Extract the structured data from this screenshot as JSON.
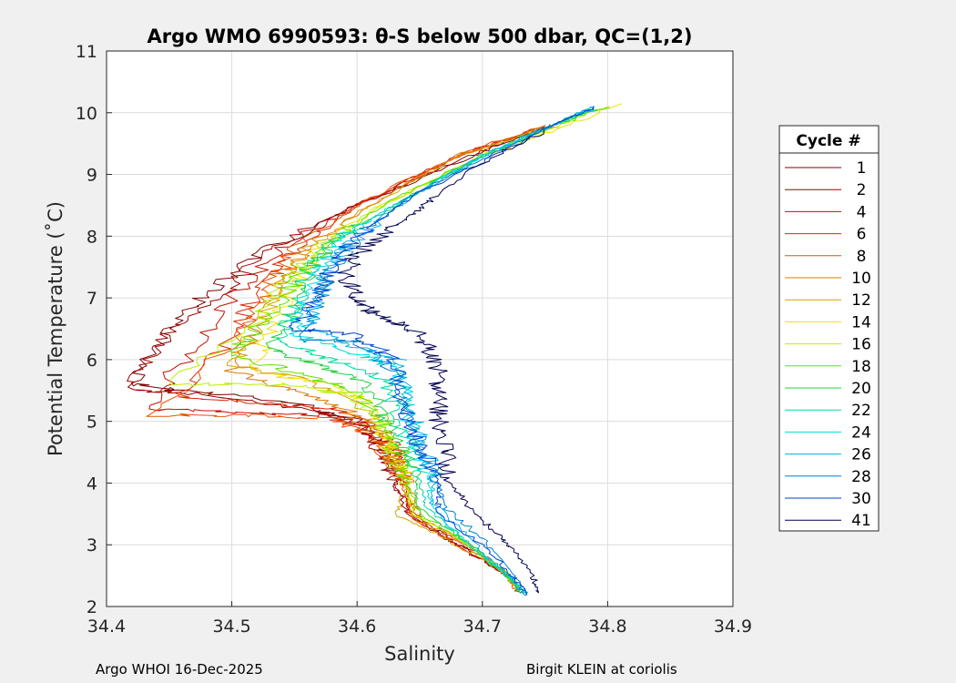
{
  "chart_data": {
    "type": "line",
    "title": "Argo WMO 6990593: θ-S below 500 dbar,  QC=(1,2)",
    "xlabel": "Salinity",
    "ylabel": "Potential Temperature (˚C)",
    "xlim": [
      34.4,
      34.9
    ],
    "ylim": [
      2,
      11
    ],
    "xticks": [
      "34.4",
      "34.5",
      "34.6",
      "34.7",
      "34.8",
      "34.9"
    ],
    "yticks": [
      "2",
      "3",
      "4",
      "5",
      "6",
      "7",
      "8",
      "9",
      "10",
      "11"
    ],
    "grid": true,
    "legend_title": "Cycle #",
    "legend_position": "right",
    "series": [
      {
        "name": "1",
        "color": "#800000",
        "points": [
          [
            34.755,
            9.8
          ],
          [
            34.69,
            9.3
          ],
          [
            34.6,
            8.5
          ],
          [
            34.53,
            7.8
          ],
          [
            34.48,
            7.1
          ],
          [
            34.45,
            6.5
          ],
          [
            34.42,
            5.6
          ],
          [
            34.46,
            5.5
          ],
          [
            34.55,
            5.3
          ],
          [
            34.6,
            5.0
          ],
          [
            34.62,
            4.6
          ],
          [
            34.63,
            4.0
          ],
          [
            34.64,
            3.5
          ],
          [
            34.68,
            3.0
          ],
          [
            34.72,
            2.5
          ],
          [
            34.73,
            2.25
          ]
        ]
      },
      {
        "name": "2",
        "color": "#a00000",
        "points": [
          [
            34.755,
            9.8
          ],
          [
            34.69,
            9.3
          ],
          [
            34.6,
            8.5
          ],
          [
            34.53,
            7.8
          ],
          [
            34.49,
            7.0
          ],
          [
            34.44,
            6.3
          ],
          [
            34.42,
            5.5
          ],
          [
            34.47,
            5.45
          ],
          [
            34.56,
            5.2
          ],
          [
            34.6,
            5.0
          ],
          [
            34.62,
            4.5
          ],
          [
            34.63,
            4.0
          ],
          [
            34.645,
            3.5
          ],
          [
            34.68,
            3.0
          ],
          [
            34.72,
            2.5
          ],
          [
            34.73,
            2.22
          ]
        ]
      },
      {
        "name": "4",
        "color": "#c01000",
        "points": [
          [
            34.75,
            9.78
          ],
          [
            34.68,
            9.3
          ],
          [
            34.6,
            8.5
          ],
          [
            34.54,
            7.8
          ],
          [
            34.5,
            7.0
          ],
          [
            34.47,
            6.2
          ],
          [
            34.43,
            5.2
          ],
          [
            34.5,
            5.15
          ],
          [
            34.57,
            5.1
          ],
          [
            34.61,
            4.9
          ],
          [
            34.63,
            4.5
          ],
          [
            34.64,
            3.9
          ],
          [
            34.64,
            3.5
          ],
          [
            34.68,
            3.0
          ],
          [
            34.72,
            2.5
          ],
          [
            34.728,
            2.25
          ]
        ]
      },
      {
        "name": "6",
        "color": "#d82800",
        "points": [
          [
            34.75,
            9.78
          ],
          [
            34.68,
            9.3
          ],
          [
            34.6,
            8.5
          ],
          [
            34.55,
            7.8
          ],
          [
            34.52,
            7.1
          ],
          [
            34.5,
            6.4
          ],
          [
            34.46,
            5.4
          ],
          [
            34.52,
            5.3
          ],
          [
            34.58,
            5.2
          ],
          [
            34.62,
            4.9
          ],
          [
            34.635,
            4.4
          ],
          [
            34.64,
            3.9
          ],
          [
            34.645,
            3.5
          ],
          [
            34.69,
            3.0
          ],
          [
            34.72,
            2.5
          ],
          [
            34.73,
            2.24
          ]
        ]
      },
      {
        "name": "8",
        "color": "#e85000",
        "points": [
          [
            34.75,
            9.78
          ],
          [
            34.68,
            9.3
          ],
          [
            34.6,
            8.5
          ],
          [
            34.55,
            7.8
          ],
          [
            34.53,
            7.2
          ],
          [
            34.51,
            6.5
          ],
          [
            34.44,
            5.1
          ],
          [
            34.51,
            5.1
          ],
          [
            34.58,
            5.05
          ],
          [
            34.61,
            4.8
          ],
          [
            34.63,
            4.3
          ],
          [
            34.64,
            3.8
          ],
          [
            34.645,
            3.4
          ],
          [
            34.69,
            2.95
          ],
          [
            34.72,
            2.5
          ],
          [
            34.728,
            2.26
          ]
        ]
      },
      {
        "name": "10",
        "color": "#e07800",
        "points": [
          [
            34.75,
            9.78
          ],
          [
            34.68,
            9.3
          ],
          [
            34.61,
            8.5
          ],
          [
            34.56,
            7.8
          ],
          [
            34.54,
            7.3
          ],
          [
            34.52,
            6.6
          ],
          [
            34.5,
            5.8
          ],
          [
            34.55,
            5.5
          ],
          [
            34.59,
            5.2
          ],
          [
            34.62,
            4.7
          ],
          [
            34.635,
            4.2
          ],
          [
            34.645,
            3.8
          ],
          [
            34.65,
            3.4
          ],
          [
            34.69,
            3.0
          ],
          [
            34.72,
            2.5
          ],
          [
            34.73,
            2.3
          ]
        ]
      },
      {
        "name": "12",
        "color": "#d8a000",
        "points": [
          [
            34.76,
            9.78
          ],
          [
            34.68,
            9.3
          ],
          [
            34.61,
            8.5
          ],
          [
            34.56,
            7.8
          ],
          [
            34.54,
            7.2
          ],
          [
            34.52,
            6.5
          ],
          [
            34.5,
            5.9
          ],
          [
            34.56,
            5.7
          ],
          [
            34.6,
            5.3
          ],
          [
            34.62,
            4.8
          ],
          [
            34.63,
            4.3
          ],
          [
            34.64,
            3.9
          ],
          [
            34.63,
            3.5
          ],
          [
            34.68,
            3.0
          ],
          [
            34.72,
            2.5
          ],
          [
            34.73,
            2.3
          ]
        ]
      },
      {
        "name": "14",
        "color": "#f0e000",
        "points": [
          [
            34.81,
            10.15
          ],
          [
            34.77,
            9.8
          ],
          [
            34.7,
            9.3
          ],
          [
            34.62,
            8.5
          ],
          [
            34.57,
            7.8
          ],
          [
            34.55,
            7.2
          ],
          [
            34.53,
            6.5
          ],
          [
            34.52,
            5.8
          ],
          [
            34.58,
            5.6
          ],
          [
            34.61,
            5.3
          ],
          [
            34.625,
            4.8
          ],
          [
            34.635,
            4.3
          ],
          [
            34.64,
            3.9
          ],
          [
            34.645,
            3.5
          ],
          [
            34.69,
            3.0
          ],
          [
            34.72,
            2.5
          ],
          [
            34.73,
            2.3
          ]
        ]
      },
      {
        "name": "16",
        "color": "#b8f000",
        "points": [
          [
            34.8,
            10.1
          ],
          [
            34.76,
            9.8
          ],
          [
            34.7,
            9.3
          ],
          [
            34.62,
            8.5
          ],
          [
            34.57,
            7.8
          ],
          [
            34.54,
            7.2
          ],
          [
            34.52,
            6.6
          ],
          [
            34.45,
            5.6
          ],
          [
            34.55,
            5.6
          ],
          [
            34.6,
            5.4
          ],
          [
            34.62,
            4.9
          ],
          [
            34.63,
            4.4
          ],
          [
            34.64,
            4.0
          ],
          [
            34.645,
            3.5
          ],
          [
            34.69,
            3.0
          ],
          [
            34.72,
            2.5
          ],
          [
            34.73,
            2.28
          ]
        ]
      },
      {
        "name": "18",
        "color": "#60e000",
        "points": [
          [
            34.8,
            10.1
          ],
          [
            34.76,
            9.8
          ],
          [
            34.7,
            9.3
          ],
          [
            34.62,
            8.5
          ],
          [
            34.58,
            7.9
          ],
          [
            34.55,
            7.3
          ],
          [
            34.53,
            6.7
          ],
          [
            34.5,
            6.1
          ],
          [
            34.55,
            5.8
          ],
          [
            34.6,
            5.5
          ],
          [
            34.62,
            5.0
          ],
          [
            34.635,
            4.5
          ],
          [
            34.64,
            4.0
          ],
          [
            34.65,
            3.5
          ],
          [
            34.69,
            3.0
          ],
          [
            34.72,
            2.5
          ],
          [
            34.73,
            2.25
          ]
        ]
      },
      {
        "name": "20",
        "color": "#20d040",
        "points": [
          [
            34.79,
            10.05
          ],
          [
            34.75,
            9.75
          ],
          [
            34.7,
            9.3
          ],
          [
            34.63,
            8.5
          ],
          [
            34.58,
            7.9
          ],
          [
            34.56,
            7.4
          ],
          [
            34.55,
            6.8
          ],
          [
            34.53,
            6.2
          ],
          [
            34.57,
            5.9
          ],
          [
            34.61,
            5.6
          ],
          [
            34.62,
            5.1
          ],
          [
            34.635,
            4.6
          ],
          [
            34.645,
            4.1
          ],
          [
            34.65,
            3.6
          ],
          [
            34.69,
            3.0
          ],
          [
            34.72,
            2.5
          ],
          [
            34.73,
            2.23
          ]
        ]
      },
      {
        "name": "22",
        "color": "#00d8a0",
        "points": [
          [
            34.79,
            10.05
          ],
          [
            34.75,
            9.75
          ],
          [
            34.7,
            9.3
          ],
          [
            34.63,
            8.5
          ],
          [
            34.58,
            7.9
          ],
          [
            34.56,
            7.4
          ],
          [
            34.55,
            6.8
          ],
          [
            34.54,
            6.3
          ],
          [
            34.58,
            6.0
          ],
          [
            34.62,
            5.7
          ],
          [
            34.63,
            5.2
          ],
          [
            34.64,
            4.7
          ],
          [
            34.65,
            4.1
          ],
          [
            34.655,
            3.6
          ],
          [
            34.69,
            3.0
          ],
          [
            34.72,
            2.5
          ],
          [
            34.735,
            2.2
          ]
        ]
      },
      {
        "name": "24",
        "color": "#00d8e0",
        "points": [
          [
            34.79,
            10.08
          ],
          [
            34.75,
            9.75
          ],
          [
            34.7,
            9.3
          ],
          [
            34.63,
            8.5
          ],
          [
            34.59,
            8.0
          ],
          [
            34.57,
            7.5
          ],
          [
            34.56,
            7.0
          ],
          [
            34.55,
            6.4
          ],
          [
            34.6,
            6.1
          ],
          [
            34.63,
            5.9
          ],
          [
            34.64,
            5.3
          ],
          [
            34.645,
            4.7
          ],
          [
            34.655,
            4.2
          ],
          [
            34.66,
            3.6
          ],
          [
            34.69,
            3.0
          ],
          [
            34.72,
            2.5
          ],
          [
            34.735,
            2.2
          ]
        ]
      },
      {
        "name": "26",
        "color": "#00b0e0",
        "points": [
          [
            34.79,
            10.1
          ],
          [
            34.75,
            9.75
          ],
          [
            34.7,
            9.3
          ],
          [
            34.64,
            8.6
          ],
          [
            34.6,
            8.0
          ],
          [
            34.58,
            7.5
          ],
          [
            34.57,
            7.0
          ],
          [
            34.56,
            6.5
          ],
          [
            34.6,
            6.2
          ],
          [
            34.635,
            6.0
          ],
          [
            34.64,
            5.4
          ],
          [
            34.65,
            4.8
          ],
          [
            34.66,
            4.2
          ],
          [
            34.66,
            3.7
          ],
          [
            34.69,
            3.1
          ],
          [
            34.72,
            2.5
          ],
          [
            34.735,
            2.2
          ]
        ]
      },
      {
        "name": "28",
        "color": "#0080d0",
        "points": [
          [
            34.79,
            10.1
          ],
          [
            34.75,
            9.75
          ],
          [
            34.7,
            9.25
          ],
          [
            34.64,
            8.6
          ],
          [
            34.6,
            8.0
          ],
          [
            34.58,
            7.5
          ],
          [
            34.57,
            7.0
          ],
          [
            34.56,
            6.3
          ],
          [
            34.6,
            6.3
          ],
          [
            34.63,
            5.8
          ],
          [
            34.64,
            5.2
          ],
          [
            34.65,
            4.6
          ],
          [
            34.665,
            4.0
          ],
          [
            34.67,
            3.6
          ],
          [
            34.7,
            3.1
          ],
          [
            34.725,
            2.5
          ],
          [
            34.735,
            2.18
          ]
        ]
      },
      {
        "name": "30",
        "color": "#0040d0",
        "points": [
          [
            34.79,
            10.1
          ],
          [
            34.75,
            9.75
          ],
          [
            34.7,
            9.2
          ],
          [
            34.64,
            8.6
          ],
          [
            34.6,
            8.0
          ],
          [
            34.58,
            7.5
          ],
          [
            34.57,
            7.0
          ],
          [
            34.55,
            6.5
          ],
          [
            34.6,
            6.4
          ],
          [
            34.63,
            6.0
          ],
          [
            34.635,
            5.3
          ],
          [
            34.65,
            4.6
          ],
          [
            34.665,
            4.0
          ],
          [
            34.665,
            3.5
          ],
          [
            34.7,
            3.0
          ],
          [
            34.725,
            2.5
          ],
          [
            34.735,
            2.18
          ]
        ]
      },
      {
        "name": "41",
        "color": "#000050",
        "points": [
          [
            34.75,
            9.7
          ],
          [
            34.7,
            9.2
          ],
          [
            34.66,
            8.6
          ],
          [
            34.64,
            8.3
          ],
          [
            34.62,
            8.0
          ],
          [
            34.6,
            7.7
          ],
          [
            34.59,
            7.4
          ],
          [
            34.6,
            7.0
          ],
          [
            34.61,
            6.8
          ],
          [
            34.63,
            6.6
          ],
          [
            34.65,
            6.4
          ],
          [
            34.66,
            6.1
          ],
          [
            34.665,
            5.8
          ],
          [
            34.665,
            5.4
          ],
          [
            34.665,
            5.0
          ],
          [
            34.67,
            4.5
          ],
          [
            34.675,
            4.0
          ],
          [
            34.69,
            3.6
          ],
          [
            34.71,
            3.2
          ],
          [
            34.725,
            2.9
          ],
          [
            34.74,
            2.5
          ],
          [
            34.745,
            2.22
          ]
        ]
      }
    ]
  },
  "footer": {
    "left": "Argo WHOI 16-Dec-2025",
    "right": "Birgit KLEIN at coriolis"
  }
}
